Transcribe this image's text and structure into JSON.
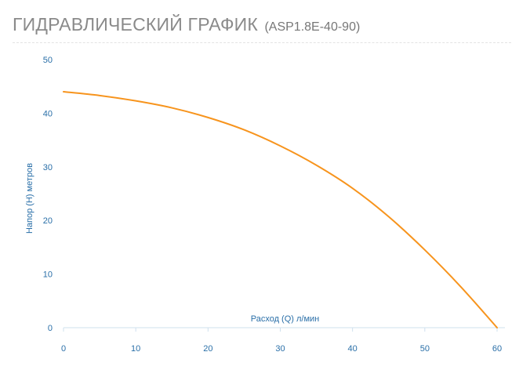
{
  "header": {
    "title": "ГИДРАВЛИЧЕСКИЙ ГРАФИК",
    "model": "(ASP1.8E-40-90)"
  },
  "colors": {
    "curve": "#f7941d",
    "axis_text": "#2a6fa8",
    "axis_line": "#cfe0ee",
    "title_text": "#8a8a8a"
  },
  "chart_data": {
    "type": "line",
    "title": "",
    "xlabel": "Расход (Q) л/мин",
    "ylabel": "Напор (H) метров",
    "xlim": [
      0,
      60
    ],
    "ylim": [
      0,
      50
    ],
    "xticks": [
      "0",
      "10",
      "20",
      "30",
      "40",
      "50",
      "60"
    ],
    "yticks": [
      "0",
      "10",
      "20",
      "30",
      "40",
      "50"
    ],
    "grid": false,
    "series": [
      {
        "x": [
          0,
          5,
          10,
          15,
          20,
          25,
          30,
          35,
          40,
          45,
          50,
          55,
          60
        ],
        "values": [
          44.0,
          43.3,
          42.3,
          41.0,
          39.2,
          36.9,
          33.9,
          30.3,
          26.0,
          20.7,
          14.5,
          7.6,
          0
        ]
      }
    ]
  }
}
